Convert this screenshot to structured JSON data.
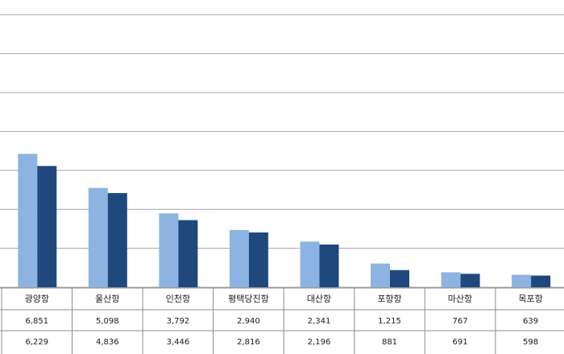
{
  "chart_data": {
    "type": "bar",
    "categories": [
      "광양항",
      "울산항",
      "인천항",
      "평택당진항",
      "대산항",
      "포항항",
      "마산항",
      "목포항"
    ],
    "series": [
      {
        "values": [
          6851,
          5098,
          3792,
          2940,
          2341,
          1215,
          767,
          639
        ],
        "color": "#8db3e2"
      },
      {
        "values": [
          6229,
          4836,
          3446,
          2816,
          2196,
          881,
          691,
          598
        ],
        "color": "#1f497d"
      }
    ],
    "value_labels": [
      [
        "6,851",
        "5,098",
        "3,792",
        "2,940",
        "2,341",
        "1,215",
        "767",
        "639"
      ],
      [
        "6,229",
        "4,836",
        "3,446",
        "2,816",
        "2,196",
        "881",
        "691",
        "598"
      ]
    ],
    "ylim": [
      0,
      20000
    ],
    "grid": true,
    "data_table": true
  }
}
